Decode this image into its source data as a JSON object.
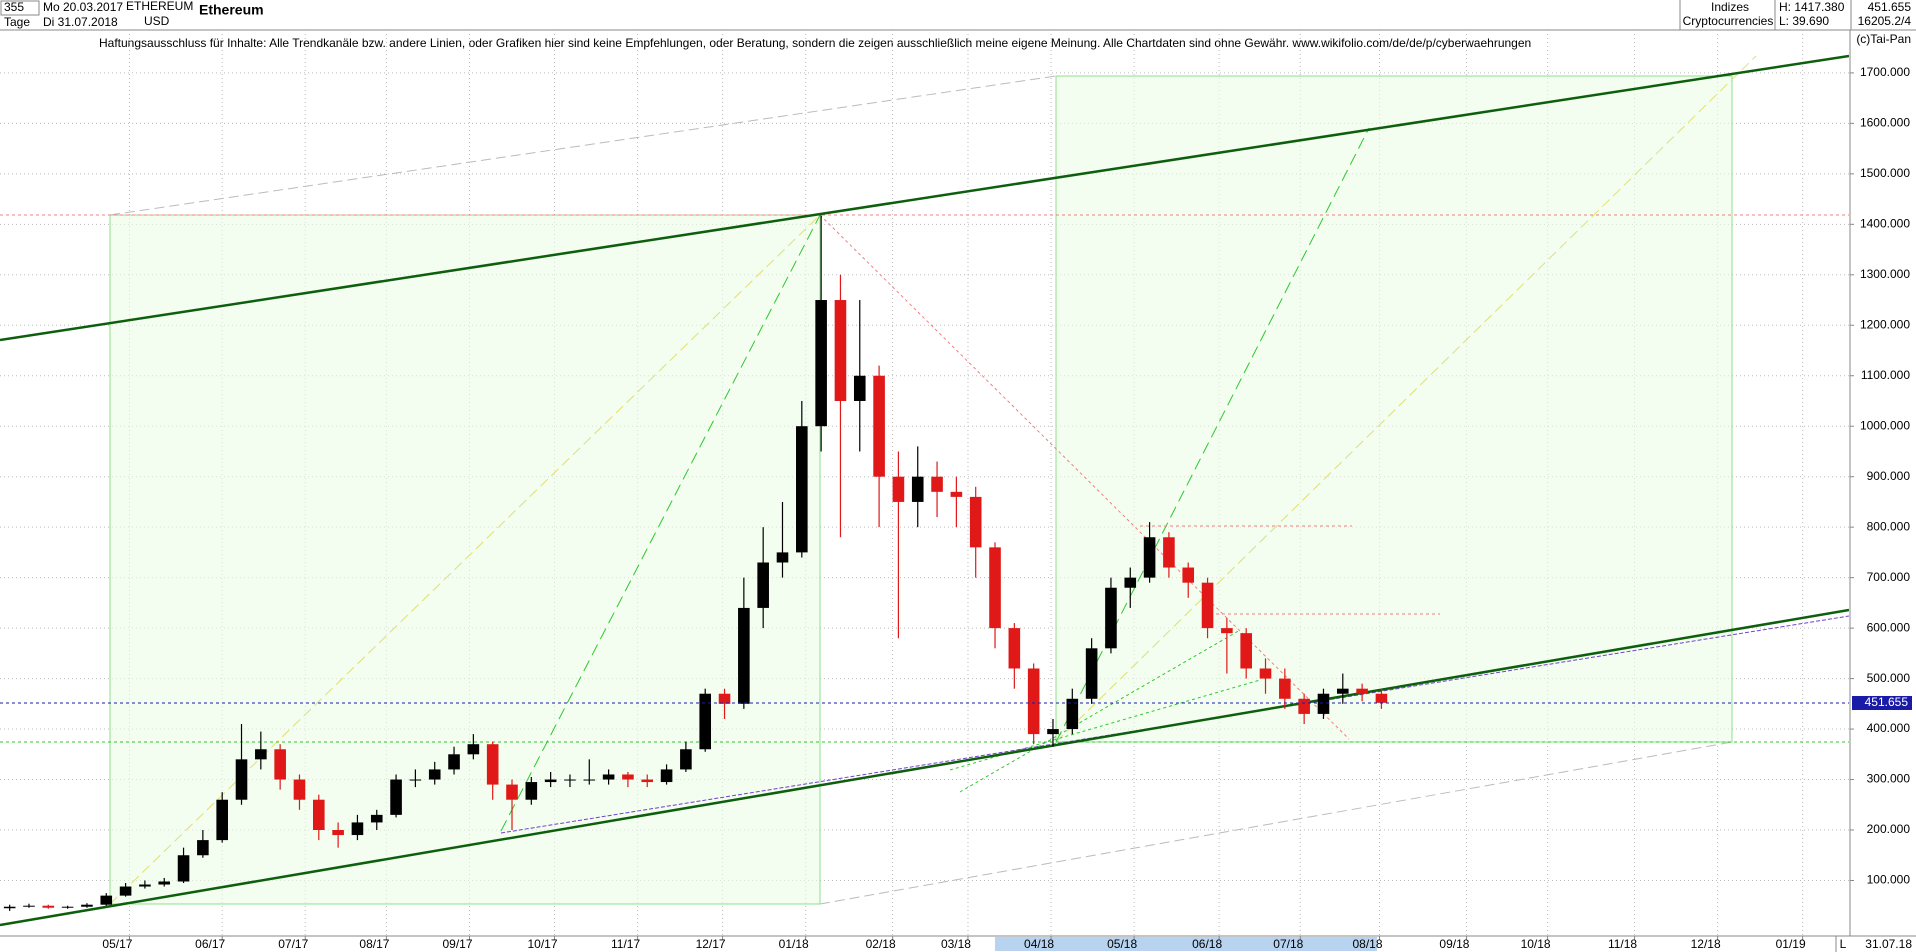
{
  "header": {
    "periods": "355",
    "start_date": "Mo 20.03.2017",
    "unit": "Tage",
    "end_date": "Di 31.07.2018",
    "symbol": "ETHEREUM",
    "currency": "USD",
    "group": "Indizes",
    "market": "Cryptocurrencies",
    "high": "H: 1417.380",
    "low": "L: 39.690",
    "volume": "16205.2/4",
    "copyright": "(c)Tai-Pan",
    "footer_date": "31.07.18",
    "footer_mode": "L"
  },
  "disclaimer": "Haftungsausschluss für Inhalte: Alle Trendkanäle bzw. andere Linien, oder Grafiken hier sind keine Empfehlungen, oder Beratung, sondern die zeigen ausschließlich meine eigene Meinung. Alle Chartdaten sind ohne Gewähr.  www.wikifolio.com/de/de/p/cyberwaehrungen",
  "chart_data": {
    "type": "candlestick",
    "title": "Ethereum",
    "open": [
      45,
      48,
      50,
      46,
      48,
      52,
      70,
      88,
      92,
      98,
      150,
      180,
      260,
      340,
      360,
      300,
      260,
      200,
      190,
      215,
      230,
      300,
      300,
      320,
      350,
      370,
      290,
      260,
      295,
      300,
      300,
      300,
      310,
      300,
      295,
      320,
      360,
      470,
      450,
      640,
      730,
      750,
      1000,
      1250,
      1050,
      1100,
      900,
      850,
      900,
      870,
      860,
      760,
      600,
      520,
      390,
      400,
      460,
      560,
      680,
      700,
      780,
      720,
      690,
      600,
      590,
      520,
      500,
      460,
      430,
      470,
      480,
      470
    ],
    "high": [
      52,
      54,
      52,
      50,
      55,
      75,
      95,
      100,
      105,
      165,
      200,
      275,
      410,
      395,
      370,
      310,
      270,
      215,
      230,
      240,
      310,
      320,
      335,
      365,
      390,
      375,
      300,
      305,
      315,
      310,
      340,
      320,
      315,
      310,
      330,
      375,
      480,
      480,
      700,
      800,
      850,
      1050,
      1417.38,
      1300,
      1250,
      1120,
      950,
      960,
      930,
      900,
      880,
      770,
      610,
      530,
      420,
      480,
      580,
      700,
      720,
      810,
      790,
      730,
      700,
      620,
      600,
      540,
      520,
      470,
      480,
      510,
      490,
      480
    ],
    "low": [
      39.69,
      46,
      44,
      44,
      46,
      50,
      68,
      84,
      88,
      95,
      145,
      175,
      250,
      320,
      280,
      240,
      180,
      165,
      180,
      200,
      225,
      285,
      290,
      310,
      340,
      260,
      200,
      250,
      285,
      285,
      290,
      290,
      285,
      285,
      290,
      315,
      355,
      420,
      440,
      600,
      700,
      740,
      950,
      780,
      950,
      800,
      580,
      800,
      820,
      800,
      700,
      560,
      480,
      370,
      365,
      390,
      450,
      550,
      640,
      690,
      700,
      660,
      580,
      510,
      500,
      470,
      440,
      410,
      420,
      450,
      455,
      440
    ],
    "close": [
      48,
      50,
      46,
      48,
      52,
      70,
      88,
      92,
      98,
      150,
      180,
      260,
      340,
      360,
      300,
      260,
      200,
      190,
      215,
      230,
      300,
      300,
      320,
      350,
      370,
      290,
      260,
      295,
      300,
      300,
      300,
      310,
      300,
      295,
      320,
      360,
      470,
      450,
      640,
      730,
      750,
      1000,
      1250,
      1050,
      1100,
      900,
      850,
      900,
      870,
      860,
      760,
      600,
      520,
      390,
      400,
      460,
      560,
      680,
      700,
      780,
      720,
      690,
      600,
      590,
      520,
      500,
      460,
      430,
      470,
      480,
      470,
      452
    ],
    "up_color": "#000000",
    "down_color": "#e01818",
    "xlim": [
      -0.5,
      95.2
    ],
    "xticks": [
      {
        "value": 6.2,
        "label": "05/17"
      },
      {
        "value": 11.0,
        "label": "06/17"
      },
      {
        "value": 15.3,
        "label": "07/17"
      },
      {
        "value": 19.5,
        "label": "08/17"
      },
      {
        "value": 23.8,
        "label": "09/17"
      },
      {
        "value": 28.2,
        "label": "10/17"
      },
      {
        "value": 32.5,
        "label": "11/17"
      },
      {
        "value": 36.9,
        "label": "12/17"
      },
      {
        "value": 41.2,
        "label": "01/18"
      },
      {
        "value": 45.7,
        "label": "02/18"
      },
      {
        "value": 49.6,
        "label": "03/18"
      },
      {
        "value": 53.9,
        "label": "04/18"
      },
      {
        "value": 58.2,
        "label": "05/18"
      },
      {
        "value": 62.6,
        "label": "06/18"
      },
      {
        "value": 66.8,
        "label": "07/18"
      },
      {
        "value": 70.9,
        "label": "08/18"
      },
      {
        "value": 75.4,
        "label": "09/18"
      },
      {
        "value": 79.6,
        "label": "10/18"
      },
      {
        "value": 84.1,
        "label": "11/18"
      },
      {
        "value": 88.4,
        "label": "12/18"
      },
      {
        "value": 92.8,
        "label": "01/19"
      }
    ],
    "ylim": [
      -10,
      1785
    ],
    "yticks": [
      {
        "value": 100,
        "label": "100.000"
      },
      {
        "value": 200,
        "label": "200.000"
      },
      {
        "value": 300,
        "label": "300.000"
      },
      {
        "value": 400,
        "label": "400.000"
      },
      {
        "value": 500,
        "label": "500.000"
      },
      {
        "value": 600,
        "label": "600.000"
      },
      {
        "value": 700,
        "label": "700.000"
      },
      {
        "value": 800,
        "label": "800.000"
      },
      {
        "value": 900,
        "label": "900.000"
      },
      {
        "value": 1000,
        "label": "1000.000"
      },
      {
        "value": 1100,
        "label": "1100.000"
      },
      {
        "value": 1200,
        "label": "1200.000"
      },
      {
        "value": 1300,
        "label": "1300.000"
      },
      {
        "value": 1400,
        "label": "1400.000"
      },
      {
        "value": 1500,
        "label": "1500.000"
      },
      {
        "value": 1600,
        "label": "1600.000"
      },
      {
        "value": 1700,
        "label": "1700.000"
      }
    ],
    "grid": true,
    "last_price": 451.655,
    "last_price_color": "#1a1aa8"
  }
}
